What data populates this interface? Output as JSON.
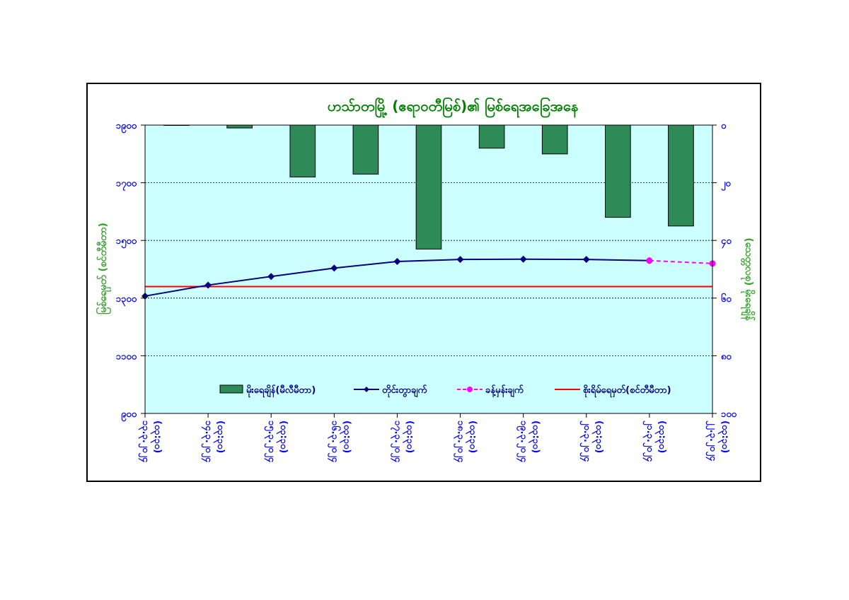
{
  "chart_data": {
    "type": "bar-line-combo",
    "title": "ဟသ်ာတမြို့ (ဧရာဝတီမြစ်)၏ မြစ်ရေအခြေအနေ",
    "left_axis": {
      "label": "မြစ်ရေမှတ် (စင်တီမီတာ)",
      "range": [
        900,
        1900
      ],
      "ticks": [
        900,
        1100,
        1300,
        1500,
        1700,
        1900
      ],
      "tick_labels": [
        "၉၀၀",
        "၁၁၀၀",
        "၁၃၀၀",
        "၁၅၀၀",
        "၁၇၀၀",
        "၁၉၀၀"
      ]
    },
    "right_axis": {
      "label": "(သေတ္တလစု) မိုးရေချိန်",
      "range": [
        100,
        0
      ],
      "inverted": true,
      "ticks": [
        0,
        20,
        40,
        60,
        80,
        100
      ],
      "tick_labels": [
        "၀",
        "၂၀",
        "၄၀",
        "၆၀",
        "၈၀",
        "၁၀၀"
      ]
    },
    "categories": [
      "၁၃.၃.၂၀၂၄\n(၀၃:၃၀)",
      "၁၄.၃.၂၀၂၄\n(၀၃:၃၀)",
      "၁၅.၃.၂၀၂၄\n(၀၃:၃၀)",
      "၁၆.၃.၂၀၂၄\n(၀၃:၃၀)",
      "၁၇.၃.၂၀၂၄\n(၀၃:၃၀)",
      "၁၈.၃.၂၀၂၄\n(၀၃:၃၀)",
      "၁၉.၃.၂၀၂၄\n(၀၃:၃၀)",
      "၂၀.၃.၂၀၂၄\n(၀၃:၃၀)",
      "၂၁.၃.၂၀၂၄\n(၀၃:၃၀)",
      "၂၂.၃.၂၀၂၄\n(၀၃:၃၀)"
    ],
    "series": [
      {
        "name": "မိုးရေချိန်(မီလီမီတာ)",
        "type": "bar",
        "axis": "right",
        "color": "#2e8b57",
        "values": [
          0,
          1,
          18,
          17,
          43,
          8,
          10,
          32,
          35,
          null
        ]
      },
      {
        "name": "တိုင်းတွာချက်",
        "type": "line",
        "axis": "left",
        "color": "#000080",
        "values": [
          1307,
          1345,
          1375,
          1404,
          1427,
          1434,
          1435,
          1434,
          1430,
          null
        ]
      },
      {
        "name": "ခန့်မှန်းချက်",
        "type": "line-dashed",
        "axis": "left",
        "color": "#ff00ff",
        "values": [
          null,
          null,
          null,
          null,
          null,
          null,
          null,
          null,
          1430,
          1420
        ]
      },
      {
        "name": "စိုးရိမ်ရေမှတ်(စင်တီမီတာ)",
        "type": "hline",
        "axis": "left",
        "color": "#ff0000",
        "value": 1340
      }
    ],
    "grid": true,
    "legend_position": "bottom-inside",
    "colors": {
      "plot_background": "#ccffff",
      "title": "#008000",
      "left_axis_text": "#0000ff",
      "right_axis_text": "#0000ff",
      "left_axis_title": "#33a02c",
      "right_axis_title": "#33a02c",
      "category_text": "#0000ff"
    }
  }
}
